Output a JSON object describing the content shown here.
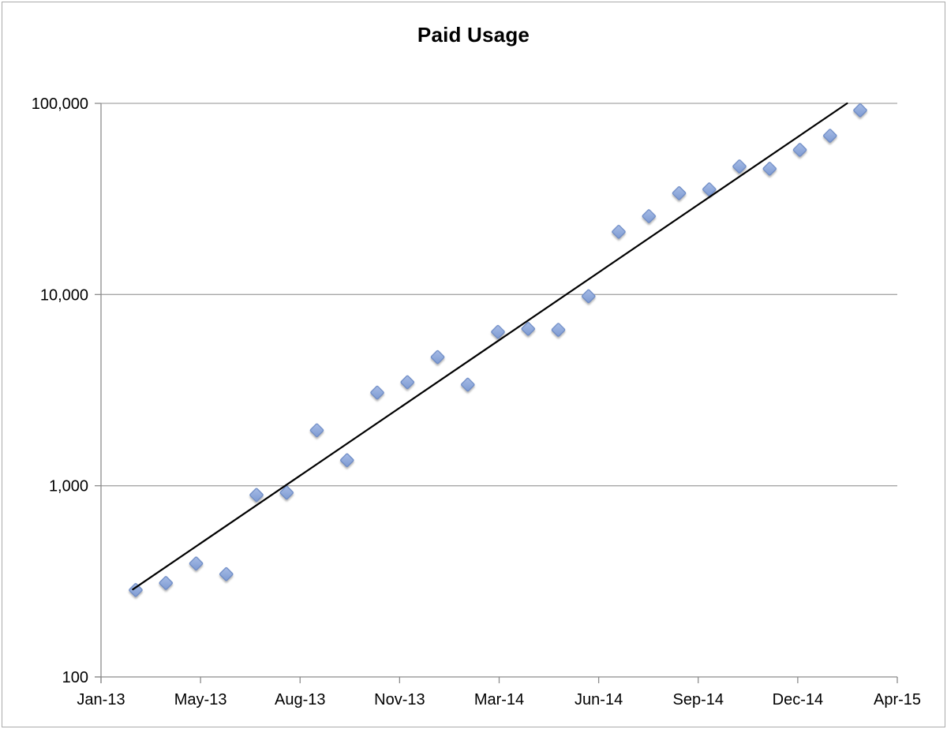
{
  "chart_data": {
    "type": "scatter",
    "title": "Paid Usage",
    "x_tick_labels": [
      "Jan-13",
      "May-13",
      "Aug-13",
      "Nov-13",
      "Mar-14",
      "Jun-14",
      "Sep-14",
      "Dec-14",
      "Apr-15"
    ],
    "y_axis": {
      "scale": "log",
      "ylim": [
        100,
        100000
      ],
      "ticks": [
        {
          "label": "100",
          "value": 100
        },
        {
          "label": "1,000",
          "value": 1000
        },
        {
          "label": "10,000",
          "value": 10000
        },
        {
          "label": "100,000",
          "value": 100000
        }
      ]
    },
    "series": [
      {
        "name": "Paid Usage",
        "marker": "diamond",
        "points": [
          {
            "month": "Feb-13",
            "value": 285
          },
          {
            "month": "Mar-13",
            "value": 310
          },
          {
            "month": "Apr-13",
            "value": 392
          },
          {
            "month": "May-13",
            "value": 345
          },
          {
            "month": "Jun-13",
            "value": 895
          },
          {
            "month": "Jul-13",
            "value": 920
          },
          {
            "month": "Aug-13",
            "value": 1950
          },
          {
            "month": "Sep-13",
            "value": 1360
          },
          {
            "month": "Oct-13",
            "value": 3070
          },
          {
            "month": "Nov-13",
            "value": 3480
          },
          {
            "month": "Dec-13",
            "value": 4710
          },
          {
            "month": "Jan-14",
            "value": 3380
          },
          {
            "month": "Feb-14",
            "value": 6380
          },
          {
            "month": "Mar-14",
            "value": 6620
          },
          {
            "month": "Apr-14",
            "value": 6540
          },
          {
            "month": "May-14",
            "value": 9800
          },
          {
            "month": "Jun-14",
            "value": 21300
          },
          {
            "month": "Jul-14",
            "value": 25700
          },
          {
            "month": "Aug-14",
            "value": 33900
          },
          {
            "month": "Sep-14",
            "value": 35500
          },
          {
            "month": "Oct-14",
            "value": 46800
          },
          {
            "month": "Nov-14",
            "value": 45500
          },
          {
            "month": "Dec-14",
            "value": 57100
          },
          {
            "month": "Jan-15",
            "value": 67700
          },
          {
            "month": "Feb-15",
            "value": 92000
          }
        ]
      }
    ],
    "trendline": {
      "type": "exponential",
      "start_frac": 0.04,
      "start_value": 287,
      "end_frac": 0.937,
      "end_value": 100000
    },
    "layout_hints": {
      "legend": "none",
      "grid": "horizontal",
      "first_point_frac": 0.0436,
      "point_step_frac": 0.03791
    },
    "colors": {
      "marker_fill_light": "#A7BCE6",
      "marker_fill_dark": "#7D9AD2",
      "marker_stroke": "#6B89C4",
      "gridline": "#A6A6A6",
      "axis": "#8C8C8C",
      "trendline": "#000000",
      "text": "#000000",
      "frame_border": "#ABABAB"
    }
  }
}
